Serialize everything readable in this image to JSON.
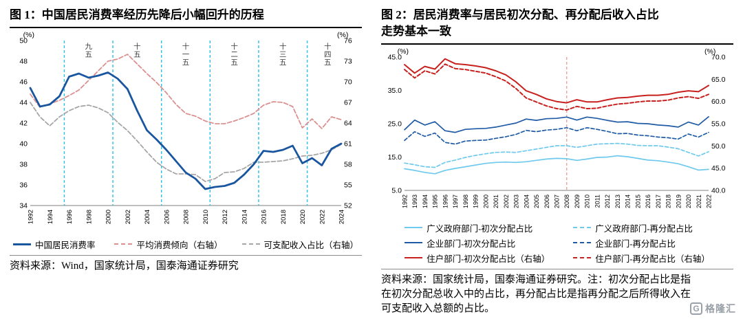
{
  "watermark": {
    "letter": "G",
    "text": "格隆汇"
  },
  "chart_data": [
    {
      "id": "figure1",
      "type": "line",
      "title": "图 1：中国居民消费率经历先降后小幅回升的历程",
      "source": "资料来源：Wind，国家统计局，国泰海通证券研究",
      "x": [
        1992,
        1993,
        1994,
        1995,
        1996,
        1997,
        1998,
        1999,
        2000,
        2001,
        2002,
        2003,
        2004,
        2005,
        2006,
        2007,
        2008,
        2009,
        2010,
        2011,
        2012,
        2013,
        2014,
        2015,
        2016,
        2017,
        2018,
        2019,
        2020,
        2021,
        2022,
        2023,
        2024
      ],
      "x_label_every": 2,
      "left_axis": {
        "unit": "(%)",
        "min": 34,
        "max": 50,
        "step": 2,
        "decimals": 0
      },
      "right_axis": {
        "unit": "(%)",
        "min": 52,
        "max": 76,
        "step": 3,
        "decimals": 0
      },
      "draw_order": "reverse",
      "vline_style": {
        "color": "#2BBFEC",
        "dash": "4 3",
        "width": 1.4
      },
      "vlines": [
        1995.5,
        2000.5,
        2005.5,
        2010.5,
        2015.5,
        2020.5
      ],
      "period_labels": [
        {
          "text": "九五",
          "x": 1998
        },
        {
          "text": "十五",
          "x": 2003
        },
        {
          "text": "十一五",
          "x": 2008
        },
        {
          "text": "十二五",
          "x": 2013
        },
        {
          "text": "十三五",
          "x": 2018
        },
        {
          "text": "十四五",
          "x": 2022.6
        }
      ],
      "series": [
        {
          "name": "中国居民消费率",
          "axis": "left",
          "color": "#1A56A0",
          "width": 2.8,
          "dash": null,
          "values": [
            45.4,
            43.6,
            43.8,
            44.6,
            46.5,
            46.8,
            46.4,
            46.6,
            46.9,
            46.3,
            45.3,
            43.2,
            41.3,
            40.4,
            39.4,
            38.3,
            37.2,
            36.6,
            35.6,
            35.8,
            35.9,
            36.2,
            37.0,
            38.0,
            39.3,
            39.2,
            39.4,
            39.8,
            38.1,
            38.6,
            37.9,
            39.5,
            40.0
          ]
        },
        {
          "name": "平均消费倾向（右轴）",
          "axis": "right",
          "color": "#DB9090",
          "width": 1.8,
          "dash": "6 3",
          "values": [
            68.2,
            66.3,
            66.8,
            67.3,
            68.0,
            68.8,
            70.2,
            71.6,
            73.0,
            73.3,
            74.0,
            72.6,
            71.2,
            69.9,
            68.4,
            66.7,
            65.4,
            65.0,
            64.3,
            63.9,
            63.9,
            64.3,
            64.8,
            65.4,
            66.6,
            67.1,
            67.0,
            66.4,
            63.3,
            64.6,
            63.2,
            64.9,
            64.5
          ]
        },
        {
          "name": "可支配收入占比（右轴）",
          "axis": "right",
          "color": "#A6A6A6",
          "width": 1.8,
          "dash": "6 3",
          "values": [
            67.0,
            64.9,
            63.6,
            64.9,
            65.8,
            66.4,
            66.6,
            66.2,
            65.5,
            64.1,
            62.9,
            61.4,
            59.8,
            58.3,
            57.3,
            56.6,
            56.6,
            56.5,
            55.5,
            55.9,
            56.8,
            56.9,
            57.4,
            58.3,
            58.3,
            58.4,
            58.5,
            58.8,
            59.2,
            59.3,
            59.6,
            60.1,
            60.9
          ]
        }
      ]
    },
    {
      "id": "figure2",
      "type": "line",
      "title": "图 2：居民消费率与居民初次分配、再分配后收入占比走势基本一致",
      "source": "资料来源：国家统计局，国泰海通证券研究。注：初次分配占比是指在初次分配总收入中的占比，再分配占比是指再分配之后所得收入在可支配收入总额的占比。",
      "x": [
        1992,
        1993,
        1994,
        1995,
        1996,
        1997,
        1998,
        1999,
        2000,
        2001,
        2002,
        2003,
        2004,
        2005,
        2006,
        2007,
        2008,
        2009,
        2010,
        2011,
        2012,
        2013,
        2014,
        2015,
        2016,
        2017,
        2018,
        2019,
        2020,
        2021,
        2022
      ],
      "x_label_every": 1,
      "left_axis": {
        "unit": "(%)",
        "min": 5,
        "max": 45,
        "step": 10,
        "decimals": 1
      },
      "right_axis": {
        "unit": "(%)",
        "min": 40,
        "max": 70,
        "step": 5,
        "decimals": 1
      },
      "draw_order": "forward",
      "vline_style": {
        "color": "#E89B9B",
        "dash": "4 3",
        "width": 1.3
      },
      "vlines": [
        2008
      ],
      "period_labels": [],
      "series": [
        {
          "name": "广义政府部门-初次分配占比",
          "axis": "left",
          "color": "#6EC9EE",
          "width": 1.7,
          "dash": null,
          "values": [
            11.5,
            11.0,
            10.4,
            10.0,
            11.0,
            11.6,
            12.1,
            12.6,
            13.1,
            13.4,
            13.5,
            13.4,
            13.6,
            14.0,
            14.4,
            14.6,
            14.5,
            14.0,
            14.4,
            14.9,
            15.0,
            15.4,
            15.1,
            14.6,
            14.1,
            13.9,
            13.5,
            13.0,
            12.1,
            11.1,
            11.3
          ]
        },
        {
          "name": "广义政府部门-再分配占比",
          "axis": "left",
          "color": "#6EC9EE",
          "width": 1.7,
          "dash": "5 3",
          "values": [
            13.2,
            12.7,
            12.1,
            11.9,
            13.4,
            14.1,
            14.9,
            15.5,
            16.0,
            16.4,
            16.5,
            16.4,
            16.9,
            17.4,
            17.9,
            18.4,
            18.4,
            17.9,
            18.4,
            18.9,
            19.0,
            19.1,
            18.9,
            18.5,
            18.4,
            18.4,
            18.0,
            17.5,
            16.4,
            15.3,
            16.6
          ]
        },
        {
          "name": "企业部门-初次分配占比",
          "axis": "left",
          "color": "#1F5AA5",
          "width": 1.7,
          "dash": null,
          "values": [
            23.2,
            26.1,
            24.6,
            25.6,
            22.9,
            22.4,
            23.3,
            23.5,
            23.6,
            24.0,
            24.6,
            25.2,
            26.4,
            26.0,
            26.5,
            26.6,
            27.0,
            26.1,
            27.0,
            26.6,
            26.0,
            25.5,
            25.6,
            25.1,
            25.0,
            24.6,
            24.4,
            24.0,
            25.5,
            24.6,
            27.1
          ]
        },
        {
          "name": "企业部门-再分配占比",
          "axis": "left",
          "color": "#1F5AA5",
          "width": 1.7,
          "dash": "5 3",
          "values": [
            20.0,
            22.6,
            21.2,
            22.2,
            19.4,
            18.9,
            19.8,
            20.0,
            20.1,
            20.6,
            21.1,
            21.8,
            23.0,
            22.6,
            23.1,
            23.3,
            23.8,
            22.9,
            23.8,
            23.3,
            22.7,
            22.0,
            22.1,
            21.6,
            21.4,
            21.0,
            20.8,
            20.4,
            21.9,
            21.0,
            22.4
          ]
        },
        {
          "name": "住户部门-初次分配占比（右轴）",
          "axis": "right",
          "color": "#C8201E",
          "width": 2.0,
          "dash": null,
          "values": [
            68.3,
            66.4,
            67.9,
            67.3,
            69.6,
            68.5,
            68.3,
            68.0,
            67.6,
            66.9,
            66.0,
            64.4,
            62.4,
            61.6,
            60.6,
            60.0,
            59.7,
            60.4,
            59.9,
            59.9,
            60.4,
            60.8,
            60.9,
            61.2,
            61.4,
            61.4,
            61.6,
            62.1,
            62.4,
            62.2,
            63.6
          ]
        },
        {
          "name": "住户部门-再分配占比（右轴）",
          "axis": "right",
          "color": "#C8201E",
          "width": 2.0,
          "dash": "5 3",
          "values": [
            67.2,
            65.3,
            66.9,
            66.2,
            68.4,
            67.4,
            67.2,
            66.8,
            66.4,
            65.6,
            64.6,
            62.9,
            60.8,
            59.9,
            59.0,
            58.4,
            58.1,
            58.9,
            58.4,
            58.5,
            59.0,
            59.4,
            59.6,
            59.9,
            60.1,
            60.1,
            60.3,
            60.8,
            61.1,
            60.7,
            61.6
          ]
        }
      ]
    }
  ]
}
